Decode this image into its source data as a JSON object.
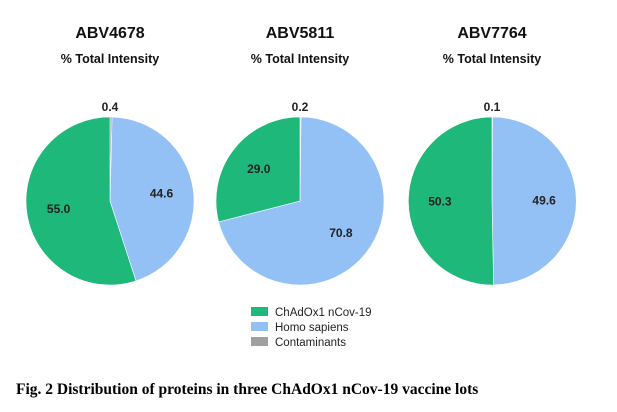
{
  "chart_data": [
    {
      "type": "pie",
      "title": "ABV4678",
      "subtitle": "% Total Intensity",
      "slices": [
        {
          "label": "Contaminants",
          "value": 0.4
        },
        {
          "label": "Homo sapiens",
          "value": 44.6
        },
        {
          "label": "ChAdOx1 nCov-19",
          "value": 55.0
        }
      ],
      "data_labels": [
        "0.4",
        "44.6",
        "55.0"
      ]
    },
    {
      "type": "pie",
      "title": "ABV5811",
      "subtitle": "% Total Intensity",
      "slices": [
        {
          "label": "Contaminants",
          "value": 0.2
        },
        {
          "label": "Homo sapiens",
          "value": 70.8
        },
        {
          "label": "ChAdOx1 nCov-19",
          "value": 29.0
        }
      ],
      "data_labels": [
        "0.2",
        "70.8",
        "29.0"
      ]
    },
    {
      "type": "pie",
      "title": "ABV7764",
      "subtitle": "% Total Intensity",
      "slices": [
        {
          "label": "Contaminants",
          "value": 0.1
        },
        {
          "label": "Homo sapiens",
          "value": 49.6
        },
        {
          "label": "ChAdOx1 nCov-19",
          "value": 50.3
        }
      ],
      "data_labels": [
        "0.1",
        "49.6",
        "50.3"
      ]
    }
  ],
  "legend": {
    "placement": "bottom-center",
    "items": [
      {
        "label": "ChAdOx1 nCov-19",
        "color": "#1db87a"
      },
      {
        "label": "Homo sapiens",
        "color": "#93c0f5"
      },
      {
        "label": "Contaminants",
        "color": "#a0a0a0"
      }
    ]
  },
  "caption": "Fig. 2 Distribution of proteins in three ChAdOx1 nCov-19 vaccine lots"
}
